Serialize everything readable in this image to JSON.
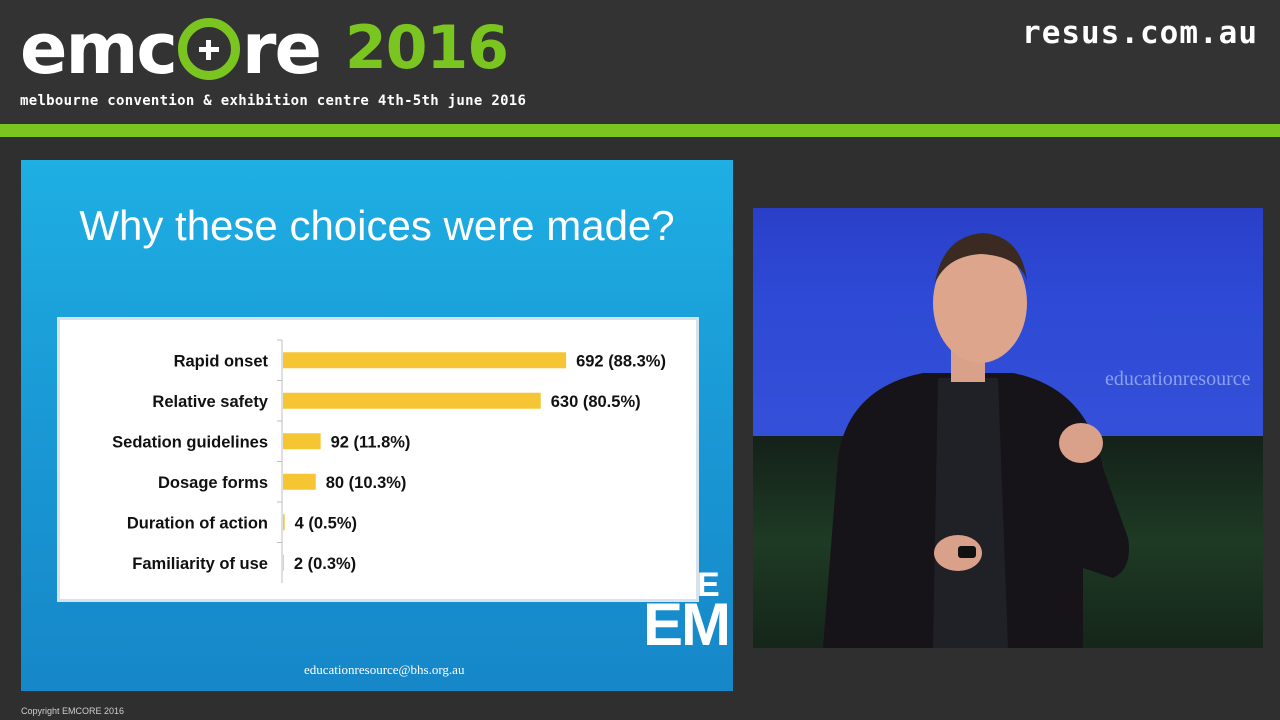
{
  "header": {
    "logo_left": "emc",
    "logo_right": "re",
    "logo_year": "2016",
    "subtitle": "melbourne convention & exhibition centre 4th-5th june 2016",
    "site": "resus.com.au"
  },
  "slide": {
    "title": "Why these choices were made?",
    "email": "educationresource@bhs.org.au",
    "em_logo": "EM",
    "em_e": "E"
  },
  "chart_data": {
    "type": "bar",
    "orientation": "horizontal",
    "categories": [
      "Rapid onset",
      "Relative safety",
      "Sedation guidelines",
      "Dosage forms",
      "Duration of action",
      "Familiarity of use"
    ],
    "values": [
      692,
      630,
      92,
      80,
      4,
      2
    ],
    "percents": [
      "88.3%",
      "80.5%",
      "11.8%",
      "10.3%",
      "0.5%",
      "0.3%"
    ],
    "data_labels": [
      "692 (88.3%)",
      "630 (80.5%)",
      "92 (11.8%)",
      "80 (10.3%)",
      "4 (0.5%)",
      "2 (0.3%)"
    ],
    "bar_color": "#f5c533",
    "xlim": [
      0,
      880
    ],
    "grid": false
  },
  "video": {
    "screen_text": "educationresource"
  },
  "footer": {
    "copyright": "Copyright EMCORE 2016"
  },
  "colors": {
    "brand_green": "#7ac520",
    "header_bg": "#333333",
    "slide_blue": "#1a9ad6"
  }
}
